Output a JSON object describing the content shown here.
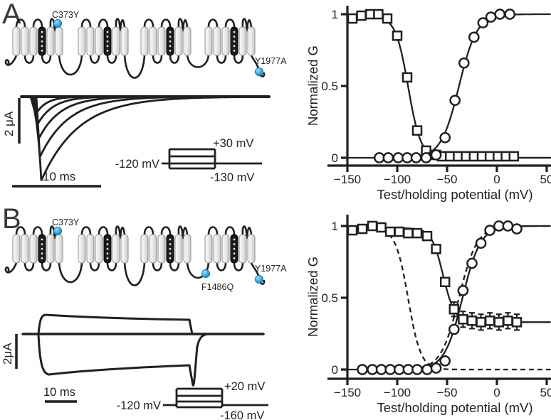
{
  "figure": {
    "panels": [
      {
        "label": "A"
      },
      {
        "label": "B"
      }
    ]
  },
  "panel_a": {
    "channel": {
      "mutations": {
        "c373y": "C373Y",
        "y1977a": "Y1977A"
      },
      "marker_color": "#2aa7e0"
    },
    "trace": {
      "current_scale": "2 μA",
      "time_scale": "10 ms",
      "approx_peaks_uA": [
        -3.7,
        -2.7,
        -1.9,
        -1.3,
        -0.8
      ]
    },
    "protocol": {
      "holding_label": "-120 mV",
      "step_top_label": "+30 mV",
      "step_bottom_label": "-130 mV"
    }
  },
  "panel_b": {
    "channel": {
      "mutations": {
        "c373y": "C373Y",
        "f1486q": "F1486Q",
        "y1977a": "Y1977A"
      },
      "marker_color": "#2aa7e0"
    },
    "trace": {
      "current_scale": "2μA",
      "time_scale": "10 ms",
      "approx_sustained_uA": [
        1.1,
        -2.3
      ],
      "approx_tail_uA": -3.0
    },
    "protocol": {
      "holding_label": "-120 mV",
      "step_top_label": "+20 mV",
      "step_bottom_label": "-160 mV"
    }
  },
  "chart_data": [
    {
      "type": "scatter",
      "panel": "A",
      "xlabel": "Test/holding potential (mV)",
      "ylabel": "Normalized G",
      "xlim": [
        -150,
        60
      ],
      "ylim": [
        0,
        1
      ],
      "xticks": [
        -150,
        -100,
        -50,
        0,
        50
      ],
      "xtick_labels": [
        "−150",
        "−100",
        "−50",
        "0",
        "50"
      ],
      "yticks": [
        0,
        0.5,
        1
      ],
      "ytick_labels": [
        "0",
        "0.5",
        "1"
      ],
      "grid": false,
      "legend": "none",
      "series": [
        {
          "name": "steady-state inactivation (squares)",
          "marker": "square",
          "x": [
            -145,
            -136,
            -127,
            -119,
            -110,
            -100,
            -90,
            -80,
            -71,
            -61,
            -55,
            -47,
            -39,
            -31,
            -23,
            -15,
            -7,
            1,
            9,
            17
          ],
          "y": [
            0.97,
            0.99,
            1.0,
            1.0,
            0.97,
            0.85,
            0.56,
            0.19,
            0.05,
            0.02,
            0.01,
            0.01,
            0.01,
            0.01,
            0.01,
            0.01,
            0.01,
            0.01,
            0.01,
            0.01
          ],
          "fit": {
            "shape": "boltzmann_dec",
            "v_half": -89,
            "k": 6.3,
            "max": 0.985,
            "min": 0,
            "v_from": -150,
            "v_to": 56
          }
        },
        {
          "name": "activation (circles)",
          "marker": "circle",
          "x": [
            -118,
            -109,
            -99,
            -90,
            -81,
            -71,
            -61,
            -52,
            -42,
            -33,
            -23,
            -14,
            -6,
            3,
            13
          ],
          "y": [
            0,
            0,
            0,
            0,
            0,
            0,
            0.02,
            0.14,
            0.4,
            0.66,
            0.84,
            0.94,
            0.98,
            1.0,
            1.0
          ],
          "fit": {
            "shape": "boltzmann_inc",
            "v_half": -38,
            "k": 9,
            "max": 1,
            "min": 0,
            "v_from": -122,
            "v_to": 56
          }
        }
      ],
      "zero_line": {
        "solid_from": -150,
        "solid_to": 56
      }
    },
    {
      "type": "scatter",
      "panel": "B",
      "xlabel": "Test/holding potential (mV)",
      "ylabel": "Normalized G",
      "xlim": [
        -150,
        60
      ],
      "ylim": [
        0,
        1
      ],
      "xticks": [
        -150,
        -100,
        -50,
        0,
        50
      ],
      "xtick_labels": [
        "−150",
        "−100",
        "−50",
        "0",
        "50"
      ],
      "yticks": [
        0,
        0.5,
        1
      ],
      "ytick_labels": [
        "0",
        "0.5",
        "1"
      ],
      "grid": false,
      "legend": "none",
      "series": [
        {
          "name": "steady-state inactivation (squares, non-zero pedestal)",
          "marker": "square",
          "x": [
            -145,
            -135,
            -125,
            -116,
            -107,
            -98,
            -89,
            -80,
            -70,
            -61,
            -52,
            -43,
            -34,
            -25,
            -16,
            -7,
            2,
            11,
            20
          ],
          "y": [
            0.97,
            0.98,
            1.0,
            0.99,
            0.96,
            0.96,
            0.95,
            0.95,
            0.93,
            0.84,
            0.61,
            0.42,
            0.35,
            0.34,
            0.33,
            0.34,
            0.33,
            0.34,
            0.33
          ],
          "err": [
            0,
            0,
            0.03,
            0,
            0,
            0,
            0,
            0,
            0.03,
            0,
            0,
            0.05,
            0.055,
            0.055,
            0.055,
            0.055,
            0.055,
            0.055,
            0.055
          ],
          "fit": {
            "shape": "boltzmann_dec",
            "v_half": -54,
            "k": 5.8,
            "max": 0.985,
            "min": 0.33,
            "v_from": -150,
            "v_to": 56
          }
        },
        {
          "name": "activation (circles)",
          "marker": "circle",
          "x": [
            -135,
            -125,
            -116,
            -107,
            -98,
            -89,
            -80,
            -70,
            -61,
            -52,
            -43,
            -34,
            -25,
            -16,
            -7,
            2,
            11,
            20
          ],
          "y": [
            0,
            0,
            0,
            0,
            0,
            0,
            0,
            0,
            0.01,
            0.06,
            0.28,
            0.55,
            0.74,
            0.88,
            0.97,
            1.0,
            1.0,
            0.98
          ],
          "fit": {
            "shape": "boltzmann_inc",
            "v_half": -34.5,
            "k": 9,
            "max": 1,
            "min": 0,
            "v_from": -150,
            "v_to": 56
          }
        }
      ],
      "reference_dashed": [
        {
          "shape": "boltzmann_dec",
          "v_half": -89,
          "k": 6.3,
          "max": 0.985,
          "min": 0,
          "v_from": -150,
          "v_to": 56,
          "name": "panel A inactivation (dashed reference)"
        },
        {
          "shape": "boltzmann_inc",
          "v_half": -38,
          "k": 9,
          "max": 1,
          "min": 0,
          "v_from": -85,
          "v_to": 56,
          "name": "panel A activation (dashed reference)"
        }
      ]
    }
  ]
}
